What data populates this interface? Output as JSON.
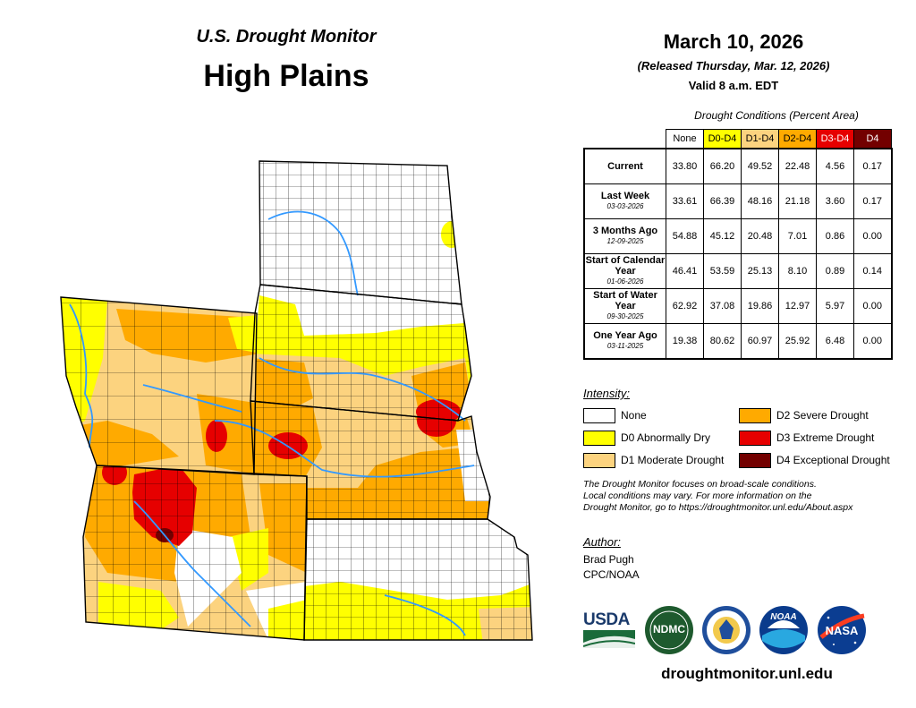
{
  "header": {
    "subtitle": "U.S. Drought Monitor",
    "title": "High Plains",
    "date": "March 10, 2026",
    "released": "(Released Thursday, Mar. 12, 2026)",
    "valid": "Valid 8 a.m. EDT"
  },
  "table": {
    "title": "Drought Conditions (Percent Area)",
    "columns": [
      {
        "label": "None",
        "color": "#ffffff"
      },
      {
        "label": "D0-D4",
        "color": "#ffff00"
      },
      {
        "label": "D1-D4",
        "color": "#fcd37f"
      },
      {
        "label": "D2-D4",
        "color": "#ffaa00"
      },
      {
        "label": "D3-D4",
        "color": "#e60000",
        "text_color": "#ffffff"
      },
      {
        "label": "D4",
        "color": "#730000",
        "text_color": "#ffffff"
      }
    ],
    "rows": [
      {
        "label": "Current",
        "date": "",
        "values": [
          "33.80",
          "66.20",
          "49.52",
          "22.48",
          "4.56",
          "0.17"
        ]
      },
      {
        "label": "Last Week",
        "date": "03-03-2026",
        "values": [
          "33.61",
          "66.39",
          "48.16",
          "21.18",
          "3.60",
          "0.17"
        ]
      },
      {
        "label": "3 Months Ago",
        "date": "12-09-2025",
        "values": [
          "54.88",
          "45.12",
          "20.48",
          "7.01",
          "0.86",
          "0.00"
        ]
      },
      {
        "label": "Start of Calendar Year",
        "date": "01-06-2026",
        "values": [
          "46.41",
          "53.59",
          "25.13",
          "8.10",
          "0.89",
          "0.14"
        ]
      },
      {
        "label": "Start of Water Year",
        "date": "09-30-2025",
        "values": [
          "62.92",
          "37.08",
          "19.86",
          "12.97",
          "5.97",
          "0.00"
        ]
      },
      {
        "label": "One Year Ago",
        "date": "03-11-2025",
        "values": [
          "19.38",
          "80.62",
          "60.97",
          "25.92",
          "6.48",
          "0.00"
        ]
      }
    ]
  },
  "legend": {
    "heading": "Intensity:",
    "items": [
      {
        "label": "None",
        "color": "#ffffff"
      },
      {
        "label": "D0 Abnormally Dry",
        "color": "#ffff00"
      },
      {
        "label": "D1 Moderate Drought",
        "color": "#fcd37f"
      },
      {
        "label": "D2 Severe Drought",
        "color": "#ffaa00"
      },
      {
        "label": "D3 Extreme Drought",
        "color": "#e60000"
      },
      {
        "label": "D4 Exceptional Drought",
        "color": "#730000"
      }
    ]
  },
  "note": {
    "line1": "The Drought Monitor focuses on broad-scale conditions.",
    "line2": "Local conditions may vary. For more information on the",
    "line3": "Drought Monitor, go to https://droughtmonitor.unl.edu/About.aspx"
  },
  "author": {
    "heading": "Author:",
    "name": "Brad Pugh",
    "org": "CPC/NOAA"
  },
  "logos": {
    "usda": "USDA",
    "ndmc": "NDMC",
    "noaa": "NOAA",
    "nasa": "NASA"
  },
  "footer": {
    "url": "droughtmonitor.unl.edu"
  },
  "map": {
    "colors": {
      "none": "#ffffff",
      "d0": "#ffff00",
      "d1": "#fcd37f",
      "d2": "#ffaa00",
      "d3": "#e60000",
      "d4": "#730000",
      "river": "#3399ff",
      "border": "#000000"
    }
  }
}
